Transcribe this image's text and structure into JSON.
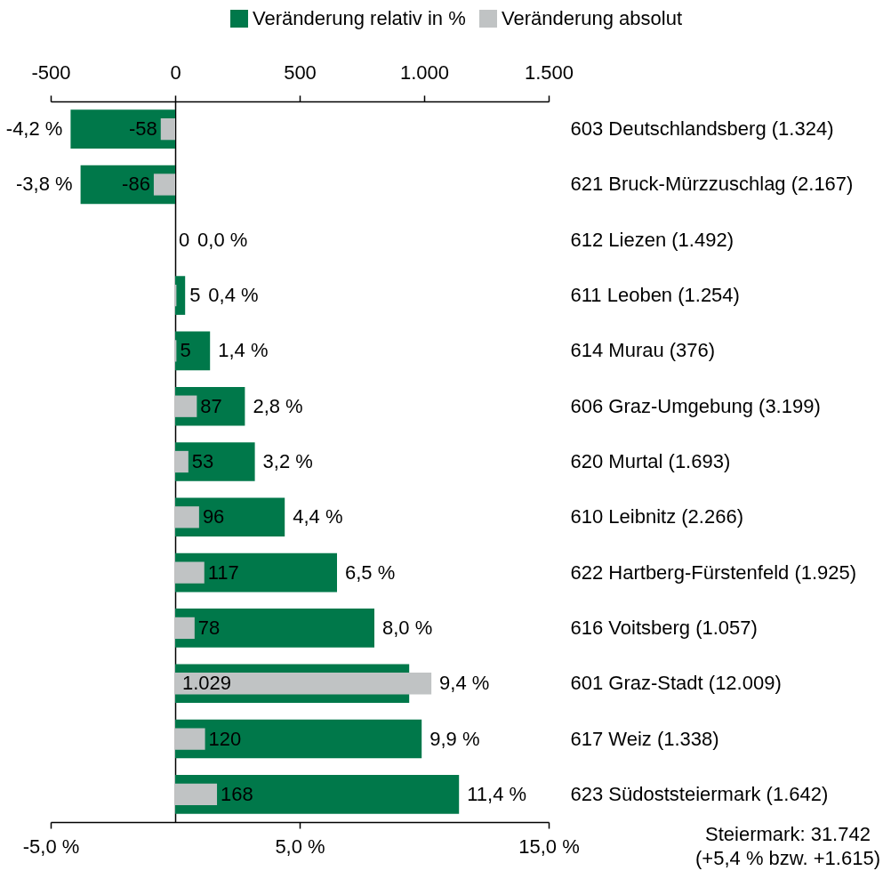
{
  "chart_data": {
    "type": "bar",
    "orientation": "horizontal",
    "categories": [
      "603 Deutschlandsberg (1.324)",
      "621 Bruck-Mürzzuschlag (2.167)",
      "612 Liezen (1.492)",
      "611 Leoben (1.254)",
      "614 Murau (376)",
      "606 Graz-Umgebung (3.199)",
      "620 Murtal (1.693)",
      "610 Leibnitz (2.266)",
      "622 Hartberg-Fürstenfeld (1.925)",
      "616 Voitsberg (1.057)",
      "601 Graz-Stadt (12.009)",
      "617 Weiz (1.338)",
      "623 Südoststeiermark (1.642)"
    ],
    "series": [
      {
        "name": "Veränderung relativ in %",
        "color": "#00784a",
        "values": [
          -4.2,
          -3.8,
          0.0,
          0.4,
          1.4,
          2.8,
          3.2,
          4.4,
          6.5,
          8.0,
          9.4,
          9.9,
          11.4
        ],
        "value_labels": [
          "-4,2 %",
          "-3,8 %",
          "0,0 %",
          "0,4 %",
          "1,4 %",
          "2,8 %",
          "3,2 %",
          "4,4 %",
          "6,5 %",
          "8,0 %",
          "9,4 %",
          "9,9 %",
          "11,4 %"
        ]
      },
      {
        "name": "Veränderung absolut",
        "color": "#c0c3c4",
        "axis": "x2",
        "values": [
          -58,
          -86,
          0,
          5,
          5,
          87,
          53,
          96,
          117,
          78,
          1029,
          120,
          168
        ],
        "value_labels": [
          "-58",
          "-86",
          "0",
          "5",
          "5",
          "87",
          "53",
          "96",
          "117",
          "78",
          "1.029",
          "120",
          "168"
        ]
      }
    ],
    "xlim": [
      -5,
      15
    ],
    "xticks": [
      {
        "value": -5,
        "label": "-5,0 %"
      },
      {
        "value": 5,
        "label": "5,0 %"
      },
      {
        "value": 15,
        "label": "15,0 %"
      }
    ],
    "x2lim": [
      -500,
      1500
    ],
    "x2ticks": [
      -500,
      0,
      500,
      {
        "value": 1000,
        "label": "1.000"
      },
      {
        "value": 1500,
        "label": "1.500"
      }
    ],
    "legend": "top",
    "annotations": [
      "Steiermark: 31.742",
      "(+5,4 % bzw. +1.615)"
    ]
  }
}
